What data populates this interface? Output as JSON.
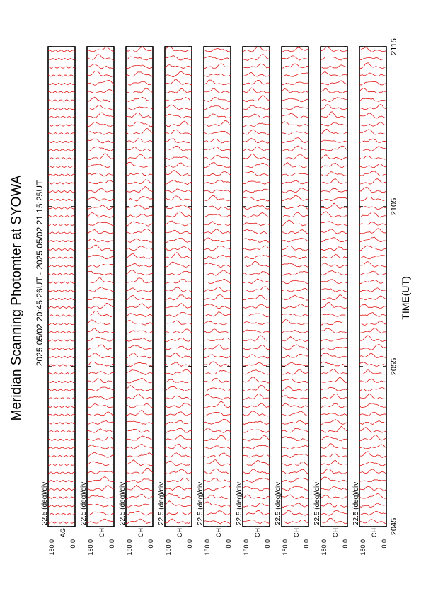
{
  "chart_data": {
    "type": "line",
    "title": "Meridian Scanning Photomter at SYOWA",
    "subtitle": "2025 05/02 20:45:26UT - 2025 05/02 21:15:25UT",
    "xlabel": "TIME(UT)",
    "x_ticks": [
      "2045",
      "2055",
      "2105",
      "2115"
    ],
    "y_ticks": [
      "180.0",
      "0.0"
    ],
    "scale_label": "22.5 (deg)/div",
    "panels": [
      {
        "channel": "AG"
      },
      {
        "channel": "CH"
      },
      {
        "channel": "CH"
      },
      {
        "channel": "CH"
      },
      {
        "channel": "CH"
      },
      {
        "channel": "CH"
      },
      {
        "channel": "CH"
      },
      {
        "channel": "CH"
      },
      {
        "channel": "CH"
      }
    ],
    "trace_color": "#e00000",
    "traces_per_panel": 58,
    "grid": false
  }
}
